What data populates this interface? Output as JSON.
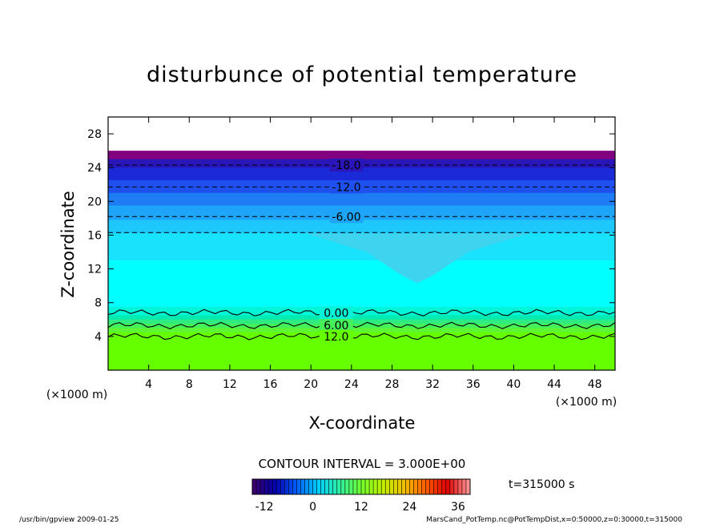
{
  "chart_data": {
    "type": "heatmap",
    "title": "disturbunce of potential temperature",
    "xlabel": "X-coordinate",
    "ylabel": "Z-coordinate",
    "x_unit": "(×1000 m)",
    "y_unit": "(×1000 m)",
    "xlim": [
      0,
      50
    ],
    "ylim": [
      0,
      30
    ],
    "x_ticks": [
      4,
      8,
      12,
      16,
      20,
      24,
      28,
      32,
      36,
      40,
      44,
      48
    ],
    "y_ticks": [
      4,
      8,
      12,
      16,
      20,
      24,
      28
    ],
    "contour_interval": "CONTOUR INTERVAL = 3.000E+00",
    "time_label": "t=315000 s",
    "colorbar_ticks": [
      -12,
      0,
      12,
      24,
      36
    ],
    "colorbar_range": [
      -15,
      39
    ],
    "colorbar_colors": [
      "#3a0070",
      "#0000b0",
      "#0060ff",
      "#00d0ff",
      "#30f0a0",
      "#70ff30",
      "#c0f000",
      "#f0c000",
      "#ff6000",
      "#e00000",
      "#ff9090"
    ],
    "bands": [
      {
        "z0": 25.0,
        "z1": 26.0,
        "value": -15,
        "color": "#800080"
      },
      {
        "z0": 24.0,
        "z1": 25.0,
        "value": -13,
        "color": "#2a16b8"
      },
      {
        "z0": 22.5,
        "z1": 24.0,
        "value": -12,
        "color": "#1a2ad8"
      },
      {
        "z0": 21.0,
        "z1": 22.5,
        "value": -10,
        "color": "#1e50f0"
      },
      {
        "z0": 19.5,
        "z1": 21.0,
        "value": -8,
        "color": "#1e7cf5"
      },
      {
        "z0": 17.8,
        "z1": 19.5,
        "value": -6,
        "color": "#1ea4f8"
      },
      {
        "z0": 16.2,
        "z1": 17.8,
        "value": -4,
        "color": "#1ec8fb"
      },
      {
        "z0": 13.0,
        "z1": 16.2,
        "value": -2,
        "color": "#19e2fc"
      },
      {
        "z0": 7.5,
        "z1": 13.0,
        "value": 0,
        "color": "#00ffff"
      },
      {
        "z0": 6.5,
        "z1": 7.5,
        "value": 2,
        "color": "#00f5d8"
      },
      {
        "z0": 6.0,
        "z1": 6.5,
        "value": 4,
        "color": "#00eab2"
      },
      {
        "z0": 5.5,
        "z1": 6.0,
        "value": 6,
        "color": "#30ec80"
      },
      {
        "z0": 5.0,
        "z1": 5.5,
        "value": 8,
        "color": "#45f058"
      },
      {
        "z0": 4.5,
        "z1": 5.0,
        "value": 10,
        "color": "#5cf538"
      },
      {
        "z0": 0.0,
        "z1": 4.5,
        "value": 12,
        "color": "#66ff00"
      }
    ],
    "contours": [
      {
        "z": 24.3,
        "label": "-18.0",
        "label_x": 23.5,
        "style": "dashed"
      },
      {
        "z": 21.7,
        "label": "-12.0",
        "label_x": 23.5,
        "style": "dashed"
      },
      {
        "z": 18.2,
        "label": "-6.00",
        "label_x": 23.5,
        "style": "dashed"
      },
      {
        "z": 16.3,
        "label": "",
        "style": "dashed"
      },
      {
        "z": 6.8,
        "label": "0.00",
        "label_x": 22.5,
        "style": "solid"
      },
      {
        "z": 5.3,
        "label": "6.00",
        "label_x": 22.5,
        "style": "solid"
      },
      {
        "z": 4.0,
        "label": "12.0",
        "label_x": 22.5,
        "style": "solid"
      }
    ],
    "plume": {
      "x_center": 30.5,
      "z_tip": 10.3,
      "color": "#3ed4f0"
    }
  },
  "footer": {
    "left": "/usr/bin/gpview   2009-01-25",
    "right": "MarsCand_PotTemp.nc@PotTempDist,x=0:50000,z=0:30000,t=315000"
  }
}
